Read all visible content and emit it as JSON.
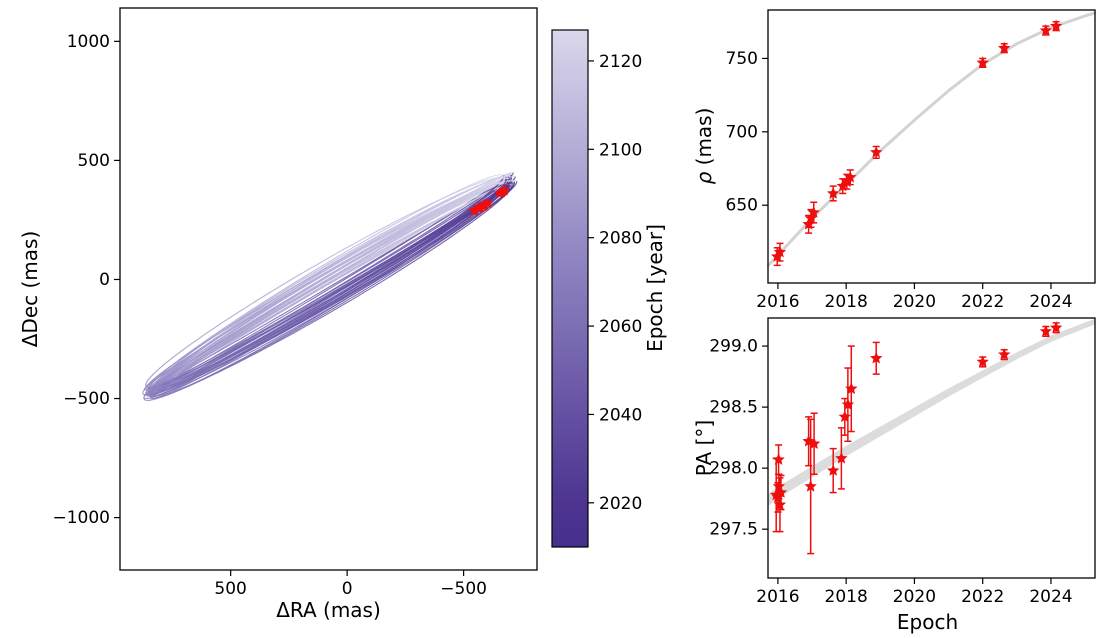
{
  "figure": {
    "background": "#ffffff",
    "data_color": "#ee0e0e",
    "model_color": "#d3d3d3",
    "band_color": "#dcdcdc",
    "cmap_stops": [
      "#472f8d",
      "#8d81c0",
      "#dedcee"
    ],
    "cmap_epoch_range": [
      2016,
      2130
    ]
  },
  "labels": {
    "orbit_xlabel": "ΔRA (mas)",
    "orbit_ylabel": "ΔDec (mas)",
    "colorbar_label": "Epoch [year]",
    "rho_symbol": "ρ",
    "rho_unit": " (mas)",
    "pa_ylabel": "PA [°]",
    "epoch_xlabel": "Epoch"
  },
  "colorbar": {
    "label": "Epoch [year]",
    "ticks": [
      2020,
      2040,
      2060,
      2080,
      2100,
      2120
    ],
    "display_range": [
      2010,
      2127
    ]
  },
  "chart_data": [
    {
      "id": "relative-orbit-sky-plane",
      "type": "line",
      "xlabel": "ΔRA (mas)",
      "ylabel": "ΔDec (mas)",
      "xlim": [
        975,
        -815
      ],
      "ylim": [
        -1220,
        1140
      ],
      "x_inverted": true,
      "xticks": [
        500,
        0,
        -500
      ],
      "yticks": [
        -1000,
        -500,
        0,
        500,
        1000
      ],
      "orbit_family": {
        "center": [
          75,
          -30
        ],
        "a_mas": 896,
        "pa_major_deg": 150,
        "b_range_mas": [
          16,
          84
        ],
        "n_orbits": 28,
        "epoch_start": 2016,
        "epoch_span_years": 114
      },
      "observed_points_mas": [
        [
          -545,
          287
        ],
        [
          -548,
          291
        ],
        [
          -563,
          299
        ],
        [
          -567,
          301
        ],
        [
          -571,
          303
        ],
        [
          -583,
          308
        ],
        [
          -587,
          310
        ],
        [
          -591,
          313
        ],
        [
          -605,
          320
        ],
        [
          -654,
          361
        ],
        [
          -663,
          366
        ],
        [
          -673,
          372
        ],
        [
          -676,
          376
        ]
      ]
    },
    {
      "id": "separation-vs-epoch",
      "type": "scatter",
      "ylabel": "ρ (mas)",
      "xlim": [
        2015.71,
        2025.29
      ],
      "ylim": [
        597,
        783
      ],
      "xticks": [
        2016,
        2018,
        2020,
        2022,
        2024
      ],
      "yticks": [
        650,
        700,
        750
      ],
      "model_curve": {
        "x": [
          2015.72,
          2016,
          2017,
          2018,
          2019,
          2020,
          2021,
          2022,
          2023,
          2024,
          2025,
          2025.28
        ],
        "y": [
          609,
          616,
          641,
          664,
          687,
          708,
          728,
          746,
          760,
          771,
          779,
          781
        ]
      },
      "points": [
        {
          "epoch": 2015.98,
          "value": 615,
          "err": 6
        },
        {
          "epoch": 2016.06,
          "value": 618,
          "err": 6
        },
        {
          "epoch": 2016.9,
          "value": 637,
          "err": 6
        },
        {
          "epoch": 2016.97,
          "value": 641,
          "err": 6
        },
        {
          "epoch": 2017.05,
          "value": 645,
          "err": 7
        },
        {
          "epoch": 2017.62,
          "value": 658,
          "err": 5
        },
        {
          "epoch": 2017.9,
          "value": 663,
          "err": 5
        },
        {
          "epoch": 2018.02,
          "value": 666,
          "err": 5
        },
        {
          "epoch": 2018.12,
          "value": 669,
          "err": 5
        },
        {
          "epoch": 2018.88,
          "value": 686,
          "err": 4
        },
        {
          "epoch": 2022.0,
          "value": 747,
          "err": 3
        },
        {
          "epoch": 2022.63,
          "value": 757,
          "err": 3
        },
        {
          "epoch": 2023.85,
          "value": 769,
          "err": 3
        },
        {
          "epoch": 2024.15,
          "value": 772,
          "err": 3
        }
      ]
    },
    {
      "id": "position-angle-vs-epoch",
      "type": "scatter",
      "xlabel": "Epoch",
      "ylabel": "PA [°]",
      "xlim": [
        2015.71,
        2025.29
      ],
      "ylim": [
        297.1,
        299.23
      ],
      "xticks": [
        2016,
        2018,
        2020,
        2022,
        2024
      ],
      "yticks": [
        297.5,
        298.0,
        298.5,
        299.0
      ],
      "ytick_decimals": 1,
      "model_band": {
        "x": [
          2015.72,
          2016,
          2017,
          2018,
          2019,
          2020,
          2021,
          2022,
          2023,
          2024,
          2025,
          2025.28
        ],
        "y": [
          297.74,
          297.8,
          297.97,
          298.14,
          298.3,
          298.46,
          298.62,
          298.77,
          298.92,
          299.06,
          299.17,
          299.2
        ],
        "halfwidth": [
          0.05,
          0.048,
          0.046,
          0.043,
          0.04,
          0.037,
          0.034,
          0.031,
          0.028,
          0.026,
          0.024,
          0.023
        ]
      },
      "points": [
        {
          "epoch": 2015.95,
          "value": 297.78,
          "err": 0.3
        },
        {
          "epoch": 2016.0,
          "value": 297.76,
          "err": 0.12
        },
        {
          "epoch": 2016.02,
          "value": 298.07,
          "err": 0.12
        },
        {
          "epoch": 2016.03,
          "value": 297.85,
          "err": 0.1
        },
        {
          "epoch": 2016.06,
          "value": 297.7,
          "err": 0.22
        },
        {
          "epoch": 2016.09,
          "value": 297.8,
          "err": 0.14
        },
        {
          "epoch": 2016.9,
          "value": 298.22,
          "err": 0.2
        },
        {
          "epoch": 2016.96,
          "value": 297.85,
          "err": 0.55
        },
        {
          "epoch": 2017.06,
          "value": 298.2,
          "err": 0.25
        },
        {
          "epoch": 2017.62,
          "value": 297.98,
          "err": 0.18
        },
        {
          "epoch": 2017.86,
          "value": 298.08,
          "err": 0.25
        },
        {
          "epoch": 2017.96,
          "value": 298.42,
          "err": 0.15
        },
        {
          "epoch": 2018.05,
          "value": 298.52,
          "err": 0.3
        },
        {
          "epoch": 2018.15,
          "value": 298.65,
          "err": 0.35
        },
        {
          "epoch": 2018.88,
          "value": 298.9,
          "err": 0.13
        },
        {
          "epoch": 2022.0,
          "value": 298.87,
          "err": 0.04
        },
        {
          "epoch": 2022.63,
          "value": 298.93,
          "err": 0.04
        },
        {
          "epoch": 2023.85,
          "value": 299.12,
          "err": 0.04
        },
        {
          "epoch": 2024.15,
          "value": 299.15,
          "err": 0.04
        }
      ]
    }
  ]
}
